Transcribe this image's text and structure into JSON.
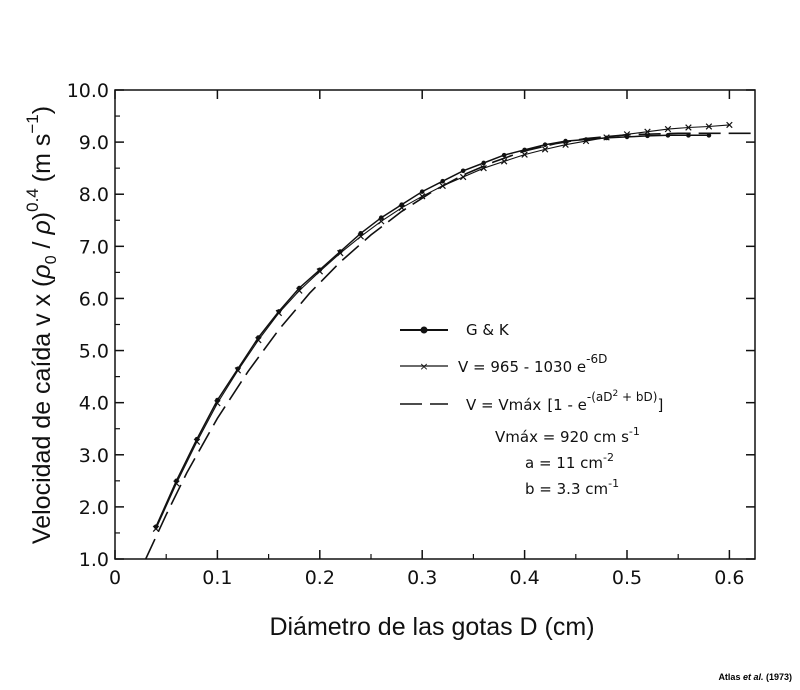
{
  "chart_data": {
    "type": "line",
    "xlabel": "Diámetro de las gotas D (cm)",
    "ylabel": "Velocidad de caída v x (ρ0 / ρ)^0.4 (m s⁻¹)",
    "xlim": [
      0,
      0.625
    ],
    "ylim": [
      1.0,
      10.0
    ],
    "x_ticks": [
      "0",
      "0.1",
      "0.2",
      "0.3",
      "0.4",
      "0.5",
      "0.6"
    ],
    "y_ticks": [
      "1.0",
      "2.0",
      "3.0",
      "4.0",
      "5.0",
      "6.0",
      "7.0",
      "8.0",
      "9.0",
      "10.0"
    ],
    "grid": false,
    "legend_position": "center-right",
    "series": [
      {
        "name": "G & K",
        "style": "solid-circle",
        "x": [
          0.04,
          0.06,
          0.08,
          0.1,
          0.12,
          0.14,
          0.16,
          0.18,
          0.2,
          0.22,
          0.24,
          0.26,
          0.28,
          0.3,
          0.32,
          0.34,
          0.36,
          0.38,
          0.4,
          0.42,
          0.44,
          0.46,
          0.48,
          0.5,
          0.52,
          0.54,
          0.56,
          0.58
        ],
        "values": [
          1.62,
          2.5,
          3.3,
          4.05,
          4.65,
          5.25,
          5.75,
          6.2,
          6.55,
          6.9,
          7.25,
          7.55,
          7.8,
          8.05,
          8.25,
          8.45,
          8.6,
          8.75,
          8.85,
          8.95,
          9.02,
          9.05,
          9.08,
          9.1,
          9.12,
          9.13,
          9.13,
          9.13
        ]
      },
      {
        "name": "V = 965 - 1030 e^-6D",
        "style": "solid-x",
        "x": [
          0.04,
          0.06,
          0.08,
          0.1,
          0.12,
          0.14,
          0.16,
          0.18,
          0.2,
          0.22,
          0.24,
          0.26,
          0.28,
          0.3,
          0.32,
          0.34,
          0.36,
          0.38,
          0.4,
          0.42,
          0.44,
          0.46,
          0.48,
          0.5,
          0.52,
          0.54,
          0.56,
          0.58,
          0.6
        ],
        "values": [
          1.58,
          2.45,
          3.25,
          3.99,
          4.62,
          5.2,
          5.72,
          6.15,
          6.52,
          6.87,
          7.19,
          7.48,
          7.74,
          7.96,
          8.16,
          8.33,
          8.5,
          8.63,
          8.76,
          8.86,
          8.95,
          9.02,
          9.09,
          9.15,
          9.2,
          9.25,
          9.28,
          9.3,
          9.33
        ]
      },
      {
        "name": "V = Vmáx [1 - e^-(aD² + bD)]",
        "style": "dashed",
        "x": [
          0.03,
          0.05,
          0.07,
          0.1,
          0.13,
          0.16,
          0.19,
          0.22,
          0.25,
          0.28,
          0.31,
          0.34,
          0.37,
          0.4,
          0.43,
          0.46,
          0.5,
          0.55,
          0.6,
          0.625
        ],
        "values": [
          1.0,
          1.85,
          2.65,
          3.7,
          4.6,
          5.4,
          6.1,
          6.7,
          7.22,
          7.67,
          8.05,
          8.37,
          8.62,
          8.83,
          8.97,
          9.07,
          9.14,
          9.17,
          9.17,
          9.17
        ]
      }
    ],
    "legend": {
      "gk": "G & K",
      "exp_prefix": "V  = 965 - 1030 e",
      "exp_sup": "-6D",
      "vmax_prefix": "V = Vmáx",
      "vmax_bracket": "[1 - e",
      "vmax_exp": "-(aD",
      "vmax_exp_sq": "2",
      "vmax_exp_tail": " + bD)",
      "vmax_close": "]",
      "param_vmax": "Vmáx = 920 cm s",
      "param_vmax_sup": "-1",
      "param_a": "a = 11 cm",
      "param_a_sup": "-2",
      "param_b": "b = 3.3 cm",
      "param_b_sup": "-1"
    },
    "ylabel_parts": {
      "main": "Velocidad de caída v x (",
      "rho0": "ρ",
      "rho0_sub": "0",
      "slash": " / ",
      "rho": "ρ",
      "close": ")",
      "exp": "0.4",
      "unit": "(m s",
      "unit_sup": "−1",
      "unit_close": ")"
    }
  },
  "credit": {
    "author": "Atlas ",
    "etal": "et al.",
    "year": " (1973)"
  }
}
